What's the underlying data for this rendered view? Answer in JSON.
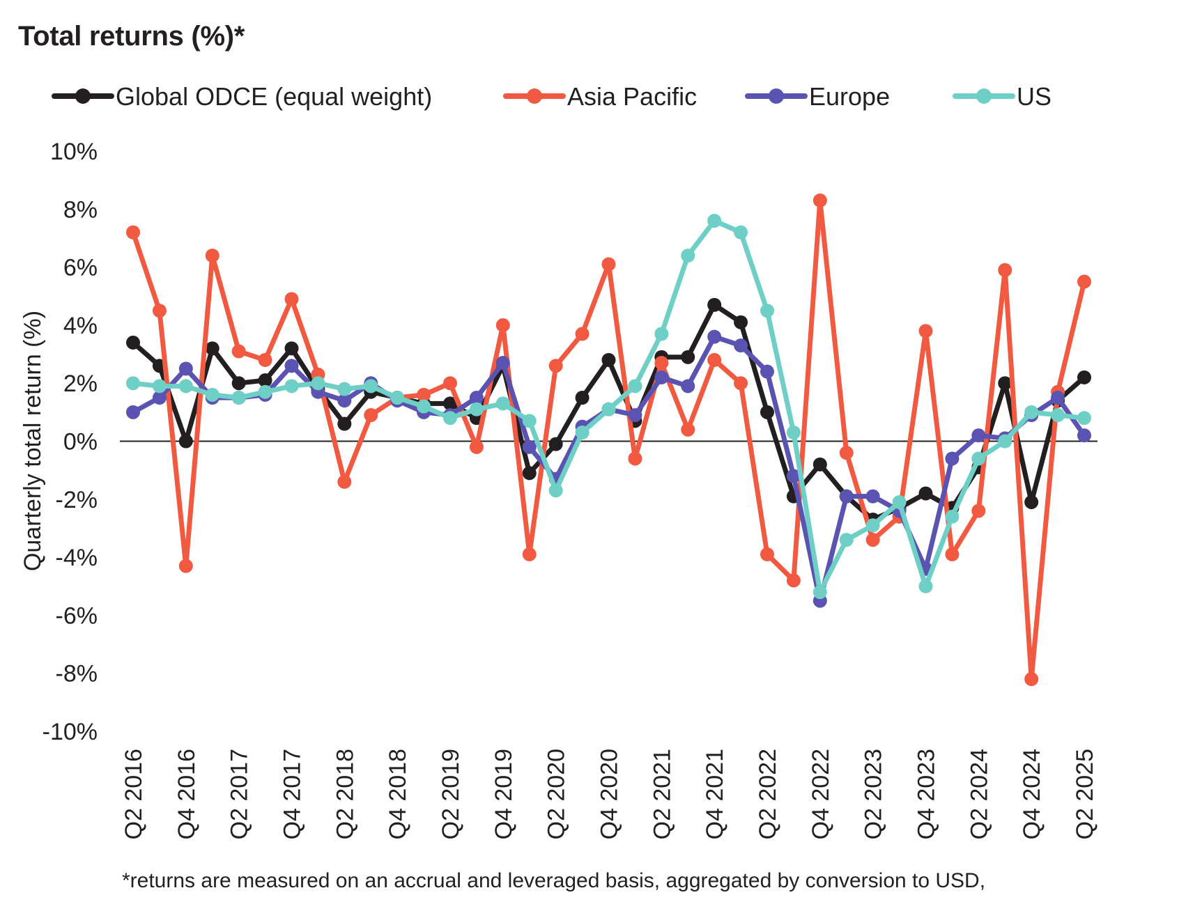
{
  "title": "Total returns (%)*",
  "footnote": "*returns are measured on an accrual and leveraged basis, aggregated by conversion to USD,",
  "chart_data": {
    "type": "line",
    "title": "Total returns (%)*",
    "ylabel": "Quarterly total return (%)",
    "xlabel": "",
    "ylim": [
      -10,
      10
    ],
    "ytick_step": 2,
    "yticks": [
      "10%",
      "8%",
      "6%",
      "4%",
      "2%",
      "0%",
      "-2%",
      "-4%",
      "-6%",
      "-8%",
      "-10%"
    ],
    "grid": false,
    "zero_line": true,
    "legend_position": "top",
    "categories": [
      "Q2 2016",
      "Q3 2016",
      "Q4 2016",
      "Q1 2017",
      "Q2 2017",
      "Q3 2017",
      "Q4 2017",
      "Q1 2018",
      "Q2 2018",
      "Q3 2018",
      "Q4 2018",
      "Q1 2019",
      "Q2 2019",
      "Q3 2019",
      "Q4 2019",
      "Q1 2020",
      "Q2 2020",
      "Q3 2020",
      "Q4 2020",
      "Q1 2021",
      "Q2 2021",
      "Q3 2021",
      "Q4 2021",
      "Q1 2022",
      "Q2 2022",
      "Q3 2022",
      "Q4 2022",
      "Q1 2023",
      "Q2 2023",
      "Q3 2023",
      "Q4 2023",
      "Q1 2024",
      "Q2 2024",
      "Q3 2024",
      "Q4 2024",
      "Q1 2025",
      "Q2 2025"
    ],
    "tick_labels": [
      "Q2 2016",
      "Q4 2016",
      "Q2 2017",
      "Q4 2017",
      "Q2 2018",
      "Q4 2018",
      "Q2 2019",
      "Q4 2019",
      "Q2 2020",
      "Q4 2020",
      "Q2 2021",
      "Q4 2021",
      "Q2 2022",
      "Q4 2022",
      "Q2 2023",
      "Q4 2023",
      "Q2 2024",
      "Q4 2024",
      "Q2 2025"
    ],
    "series": [
      {
        "name": "Global ODCE (equal weight)",
        "color": "#231f20",
        "values": [
          3.4,
          2.6,
          0.0,
          3.2,
          2.0,
          2.1,
          3.2,
          1.8,
          0.6,
          1.7,
          1.5,
          1.3,
          1.3,
          0.8,
          2.6,
          -1.1,
          -0.1,
          1.5,
          2.8,
          0.7,
          2.9,
          2.9,
          4.7,
          4.1,
          1.0,
          -1.9,
          -0.8,
          -1.9,
          -2.7,
          -2.3,
          -1.8,
          -2.3,
          -0.9,
          2.0,
          -2.1,
          1.4,
          2.2
        ]
      },
      {
        "name": "Asia Pacific",
        "color": "#f15a40",
        "values": [
          7.2,
          4.5,
          -4.3,
          6.4,
          3.1,
          2.8,
          4.9,
          2.3,
          -1.4,
          0.9,
          1.5,
          1.6,
          2.0,
          -0.2,
          4.0,
          -3.9,
          2.6,
          3.7,
          6.1,
          -0.6,
          2.7,
          0.4,
          2.8,
          2.0,
          -3.9,
          -4.8,
          8.3,
          -0.4,
          -3.4,
          -2.6,
          3.8,
          -3.9,
          -2.4,
          5.9,
          -8.2,
          1.7,
          5.5
        ]
      },
      {
        "name": "Europe",
        "color": "#5a53b1",
        "values": [
          1.0,
          1.5,
          2.5,
          1.5,
          1.5,
          1.6,
          2.6,
          1.7,
          1.4,
          2.0,
          1.4,
          1.0,
          0.9,
          1.5,
          2.7,
          -0.2,
          -1.3,
          0.5,
          1.1,
          0.9,
          2.2,
          1.9,
          3.6,
          3.3,
          2.4,
          -1.2,
          -5.5,
          -1.9,
          -1.9,
          -2.4,
          -4.4,
          -0.6,
          0.2,
          0.1,
          0.9,
          1.5,
          0.2
        ]
      },
      {
        "name": "US",
        "color": "#6ecfc6",
        "values": [
          2.0,
          1.9,
          1.9,
          1.6,
          1.5,
          1.7,
          1.9,
          2.0,
          1.8,
          1.9,
          1.5,
          1.2,
          0.8,
          1.1,
          1.3,
          0.7,
          -1.7,
          0.3,
          1.1,
          1.9,
          3.7,
          6.4,
          7.6,
          7.2,
          4.5,
          0.3,
          -5.2,
          -3.4,
          -2.9,
          -2.1,
          -5.0,
          -2.6,
          -0.6,
          0.0,
          1.0,
          0.9,
          0.8
        ]
      }
    ]
  }
}
